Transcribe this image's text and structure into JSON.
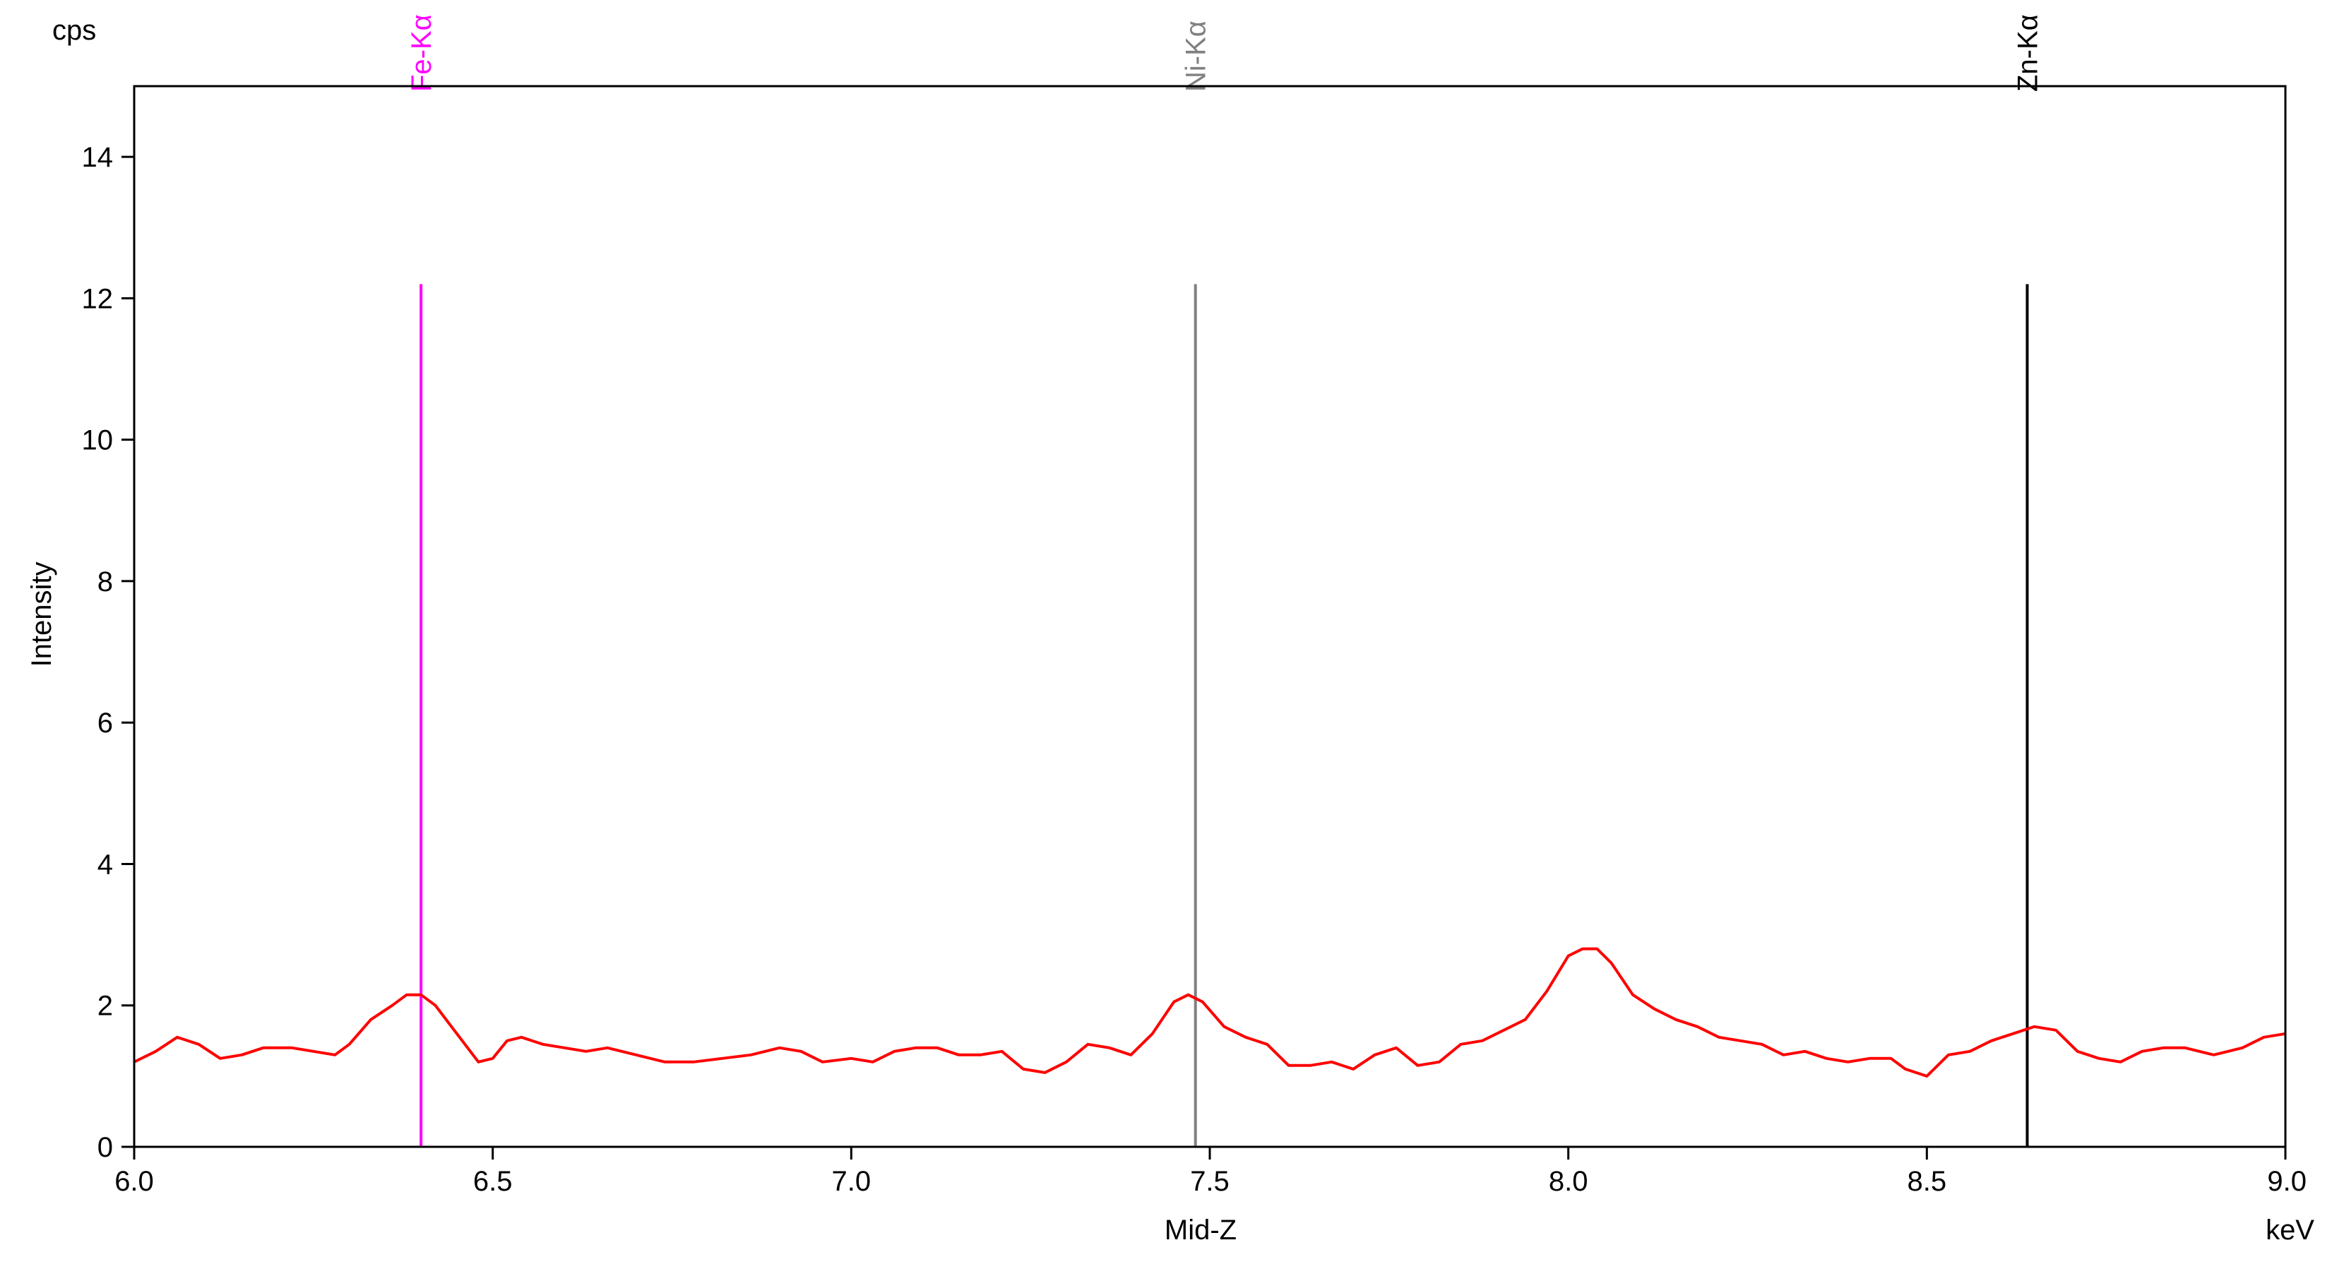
{
  "chart_data": {
    "type": "line",
    "title": "",
    "xlabel": "Mid-Z",
    "x_unit": "keV",
    "ylabel": "Intensity",
    "y_unit": "cps",
    "xlim": [
      6.0,
      9.0
    ],
    "ylim": [
      0,
      15
    ],
    "x_ticks": [
      "6.0",
      "6.5",
      "7.0",
      "7.5",
      "8.0",
      "8.5",
      "9.0"
    ],
    "y_ticks": [
      "0",
      "2",
      "4",
      "6",
      "8",
      "10",
      "12",
      "14"
    ],
    "grid": false,
    "series": [
      {
        "color": "#ff0000",
        "x": [
          6.0,
          6.03,
          6.06,
          6.09,
          6.12,
          6.15,
          6.18,
          6.22,
          6.25,
          6.28,
          6.3,
          6.33,
          6.36,
          6.38,
          6.4,
          6.42,
          6.45,
          6.48,
          6.5,
          6.52,
          6.54,
          6.57,
          6.6,
          6.63,
          6.66,
          6.7,
          6.74,
          6.78,
          6.82,
          6.86,
          6.9,
          6.93,
          6.96,
          7.0,
          7.03,
          7.06,
          7.09,
          7.12,
          7.15,
          7.18,
          7.21,
          7.24,
          7.27,
          7.3,
          7.33,
          7.36,
          7.39,
          7.42,
          7.45,
          7.47,
          7.49,
          7.52,
          7.55,
          7.58,
          7.61,
          7.64,
          7.67,
          7.7,
          7.73,
          7.76,
          7.79,
          7.82,
          7.85,
          7.88,
          7.91,
          7.94,
          7.97,
          8.0,
          8.02,
          8.04,
          8.06,
          8.09,
          8.12,
          8.15,
          8.18,
          8.21,
          8.24,
          8.27,
          8.3,
          8.33,
          8.36,
          8.39,
          8.42,
          8.45,
          8.47,
          8.5,
          8.53,
          8.56,
          8.59,
          8.62,
          8.65,
          8.68,
          8.71,
          8.74,
          8.77,
          8.8,
          8.83,
          8.86,
          8.9,
          8.94,
          8.97,
          9.0
        ],
        "y": [
          1.2,
          1.35,
          1.55,
          1.45,
          1.25,
          1.3,
          1.4,
          1.4,
          1.35,
          1.3,
          1.45,
          1.8,
          2.0,
          2.15,
          2.15,
          2.0,
          1.6,
          1.2,
          1.25,
          1.5,
          1.55,
          1.45,
          1.4,
          1.35,
          1.4,
          1.3,
          1.2,
          1.2,
          1.25,
          1.3,
          1.4,
          1.35,
          1.2,
          1.25,
          1.2,
          1.35,
          1.4,
          1.4,
          1.3,
          1.3,
          1.35,
          1.1,
          1.05,
          1.2,
          1.45,
          1.4,
          1.3,
          1.6,
          2.05,
          2.15,
          2.05,
          1.7,
          1.55,
          1.45,
          1.15,
          1.15,
          1.2,
          1.1,
          1.3,
          1.4,
          1.15,
          1.2,
          1.45,
          1.5,
          1.65,
          1.8,
          2.2,
          2.7,
          2.8,
          2.8,
          2.6,
          2.15,
          1.95,
          1.8,
          1.7,
          1.55,
          1.5,
          1.45,
          1.3,
          1.35,
          1.25,
          1.2,
          1.25,
          1.25,
          1.1,
          1.0,
          1.3,
          1.35,
          1.5,
          1.6,
          1.7,
          1.65,
          1.35,
          1.25,
          1.2,
          1.35,
          1.4,
          1.4,
          1.3,
          1.4,
          1.55,
          1.6
        ]
      }
    ],
    "markers": [
      {
        "label": "Fe-Kα",
        "x": 6.4,
        "y_top": 12.2,
        "color": "#ff00ff"
      },
      {
        "label": "Ni-Kα",
        "x": 7.48,
        "y_top": 12.2,
        "color": "#808080"
      },
      {
        "label": "Zn-Kα",
        "x": 8.64,
        "y_top": 12.2,
        "color": "#000000"
      }
    ]
  }
}
